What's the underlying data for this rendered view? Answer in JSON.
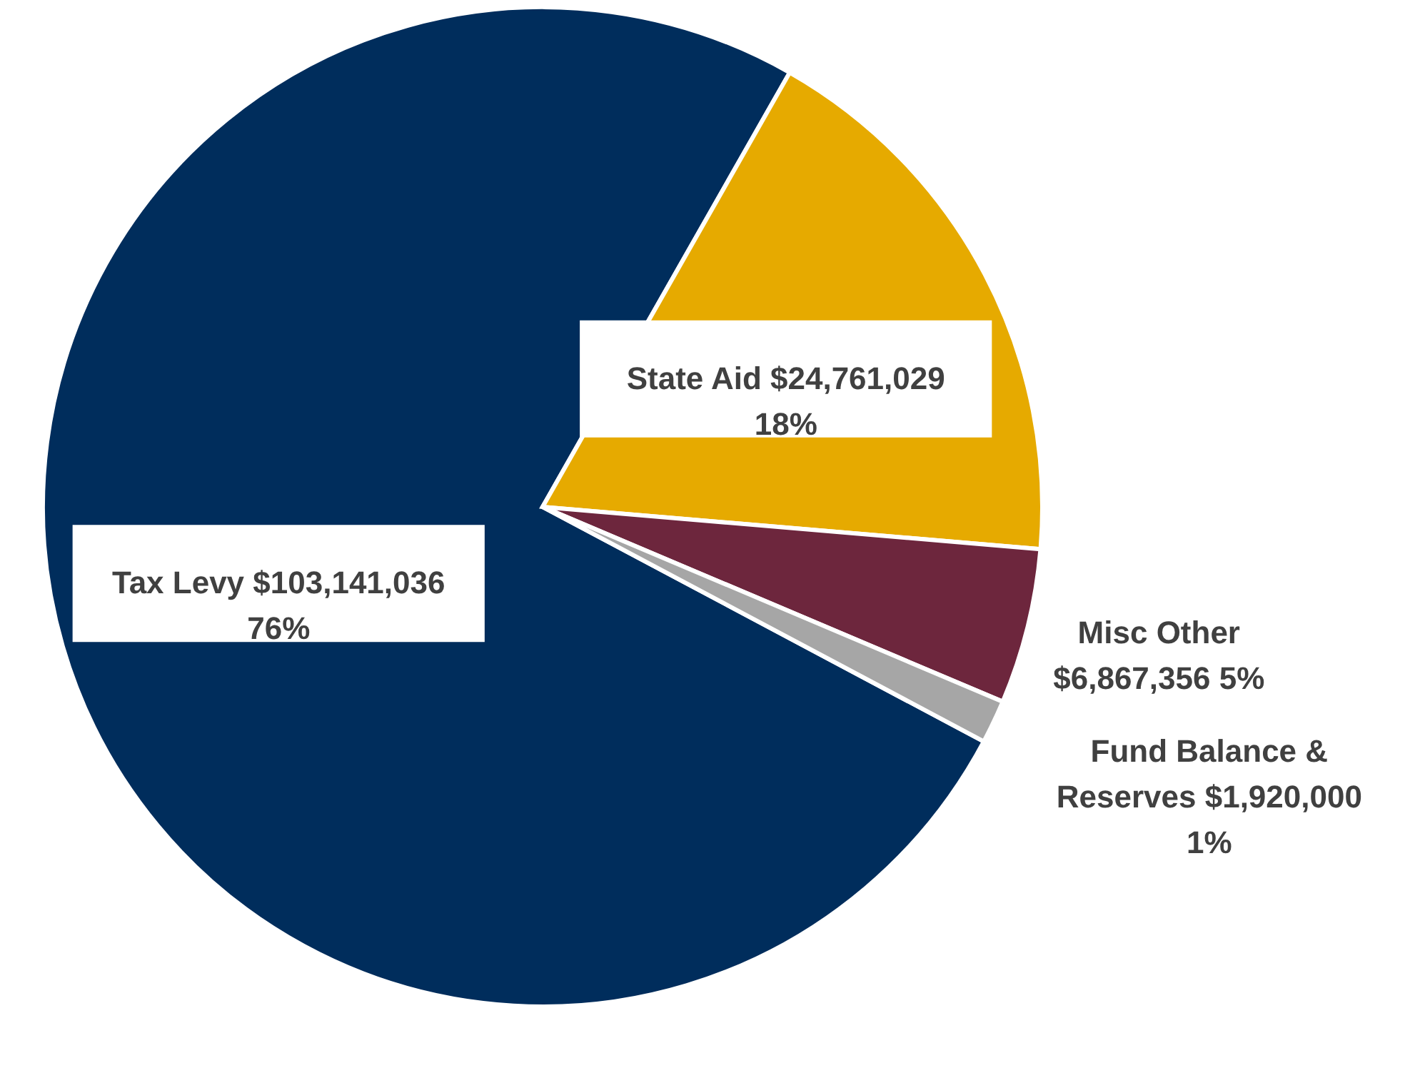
{
  "chart_data": {
    "type": "pie",
    "categories": [
      "Tax Levy",
      "State Aid",
      "Misc Other",
      "Fund Balance & Reserves"
    ],
    "values": [
      103141036,
      24761029,
      6867356,
      1920000
    ],
    "colors": [
      "#002d5c",
      "#e6aa00",
      "#6d263d",
      "#a6a6a6"
    ],
    "value_labels": [
      "$103,141,036 76%",
      "$24,761,029 18%",
      "$6,867,356 5%",
      "$1,920,000 1%"
    ]
  }
}
